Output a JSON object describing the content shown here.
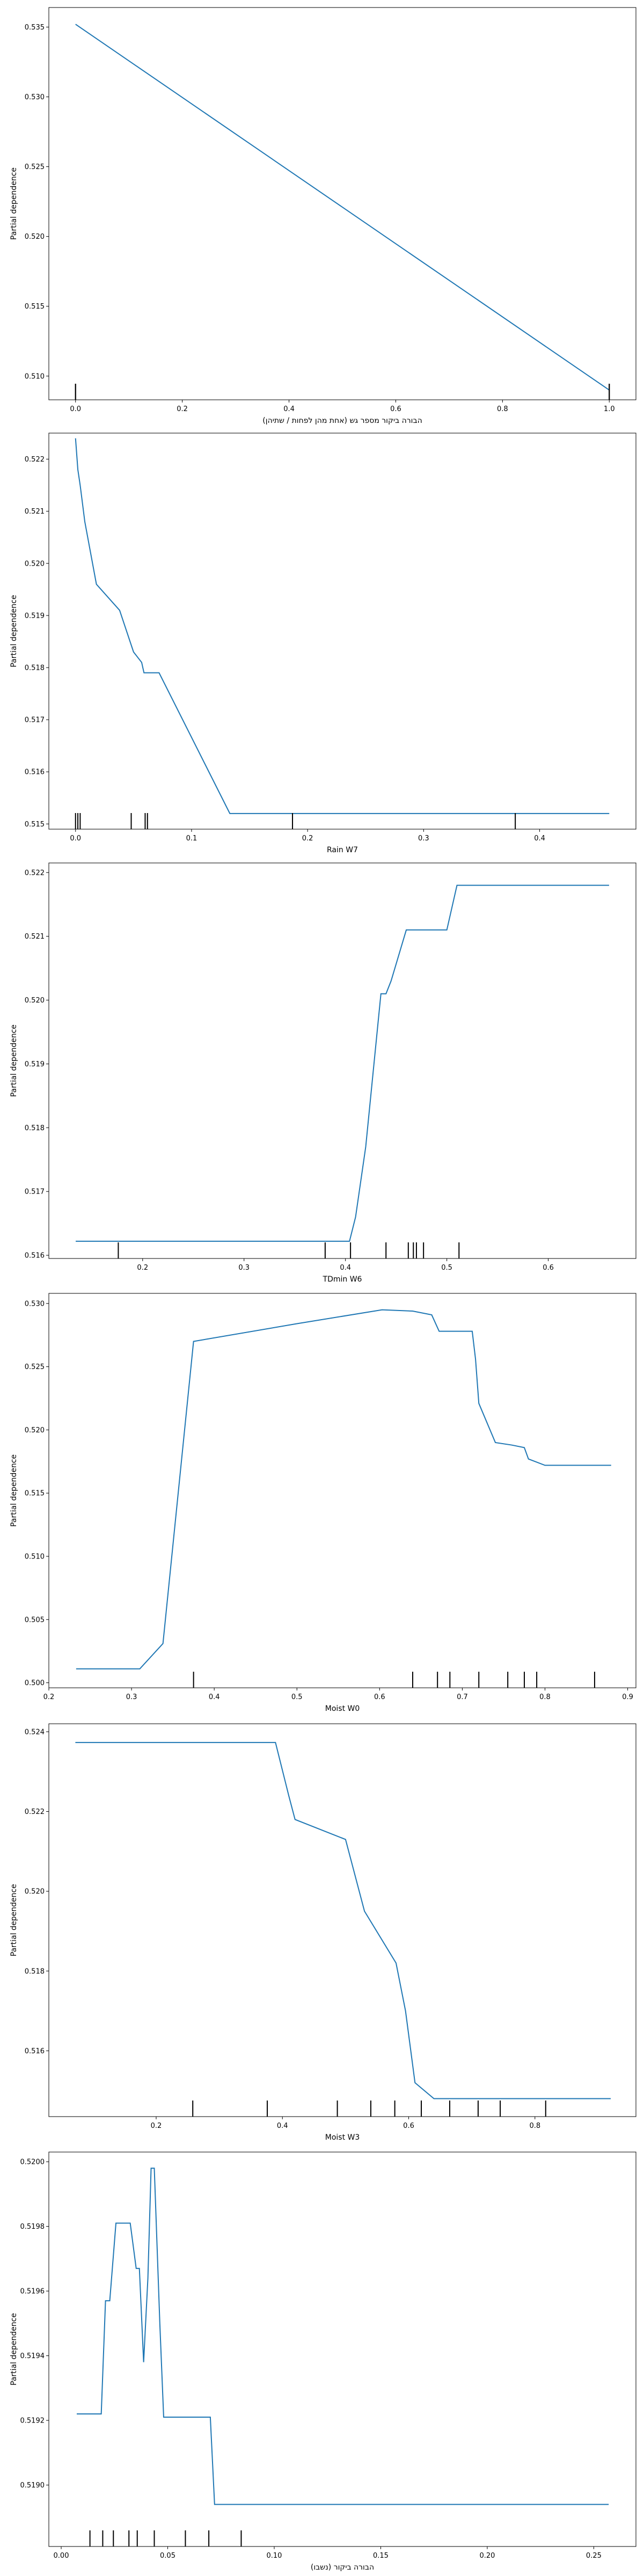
{
  "figure": {
    "background": "#ffffff",
    "line_color": "#1f77b4",
    "rug_color": "#000000"
  },
  "chart_data": [
    {
      "type": "line",
      "xlabel": "(אחת מהן לפחות / שתיהן) הבורה ביקור מספר גש",
      "ylabel": "Partial dependence",
      "xlim": [
        -0.05,
        1.05
      ],
      "ylim": [
        0.5083,
        0.5364
      ],
      "xticks": [
        0.0,
        0.2,
        0.4,
        0.6,
        0.8,
        1.0
      ],
      "xtick_labels": [
        "0.0",
        "0.2",
        "0.4",
        "0.6",
        "0.8",
        "1.0"
      ],
      "yticks": [
        0.51,
        0.515,
        0.52,
        0.525,
        0.53,
        0.535
      ],
      "ytick_labels": [
        "0.510",
        "0.515",
        "0.520",
        "0.525",
        "0.530",
        "0.535"
      ],
      "series": [
        {
          "x": [
            0.0,
            1.0
          ],
          "y": [
            0.5352,
            0.509
          ]
        }
      ],
      "rug": [
        0.0,
        0.0,
        1.0,
        1.0
      ]
    },
    {
      "type": "line",
      "xlabel": "Rain W7",
      "ylabel": "Partial dependence",
      "xlim": [
        -0.023,
        0.483
      ],
      "ylim": [
        0.5149,
        0.5225
      ],
      "xticks": [
        0.0,
        0.1,
        0.2,
        0.3,
        0.4
      ],
      "xtick_labels": [
        "0.0",
        "0.1",
        "0.2",
        "0.3",
        "0.4"
      ],
      "yticks": [
        0.515,
        0.516,
        0.517,
        0.518,
        0.519,
        0.52,
        0.521,
        0.522
      ],
      "ytick_labels": [
        "0.515",
        "0.516",
        "0.517",
        "0.518",
        "0.519",
        "0.520",
        "0.521",
        "0.522"
      ],
      "series": [
        {
          "x": [
            0.0,
            0.002,
            0.004,
            0.008,
            0.018,
            0.038,
            0.05,
            0.057,
            0.059,
            0.061,
            0.072,
            0.133,
            0.2,
            0.3,
            0.46
          ],
          "y": [
            0.5224,
            0.5218,
            0.5215,
            0.5208,
            0.5196,
            0.5191,
            0.5183,
            0.5181,
            0.5179,
            0.5179,
            0.5179,
            0.5152,
            0.5152,
            0.5152,
            0.5152
          ]
        }
      ],
      "rug": [
        0.0,
        0.002,
        0.004,
        0.048,
        0.06,
        0.062,
        0.187,
        0.379
      ]
    },
    {
      "type": "line",
      "xlabel": "TDmin W6",
      "ylabel": "Partial dependence",
      "xlim": [
        0.1075,
        0.6865
      ],
      "ylim": [
        0.51595,
        0.52215
      ],
      "xticks": [
        0.2,
        0.3,
        0.4,
        0.5,
        0.6,
        0.7
      ],
      "xtick_labels": [
        "0.2",
        "0.3",
        "0.4",
        "0.5",
        "0.6",
        "0.7"
      ],
      "yticks": [
        0.516,
        0.517,
        0.518,
        0.519,
        0.52,
        0.521,
        0.522
      ],
      "ytick_labels": [
        "0.516",
        "0.517",
        "0.518",
        "0.519",
        "0.520",
        "0.521",
        "0.522"
      ],
      "series": [
        {
          "x": [
            0.134,
            0.2,
            0.3,
            0.404,
            0.41,
            0.42,
            0.43,
            0.435,
            0.44,
            0.445,
            0.46,
            0.475,
            0.5,
            0.51,
            0.6,
            0.66
          ],
          "y": [
            0.51622,
            0.51622,
            0.51622,
            0.51622,
            0.5166,
            0.5177,
            0.5193,
            0.5201,
            0.5201,
            0.5203,
            0.5211,
            0.5211,
            0.5211,
            0.5218,
            0.5218,
            0.5218
          ]
        }
      ],
      "rug": [
        0.176,
        0.38,
        0.405,
        0.44,
        0.462,
        0.467,
        0.47,
        0.477,
        0.512
      ]
    },
    {
      "type": "line",
      "xlabel": "Moist W0",
      "ylabel": "Partial dependence",
      "xlim": [
        0.2,
        0.91
      ],
      "ylim": [
        0.4996,
        0.5308
      ],
      "xticks": [
        0.2,
        0.3,
        0.4,
        0.5,
        0.6,
        0.7,
        0.8,
        0.9
      ],
      "xtick_labels": [
        "0.2",
        "0.3",
        "0.4",
        "0.5",
        "0.6",
        "0.7",
        "0.8",
        "0.9"
      ],
      "yticks": [
        0.5,
        0.505,
        0.51,
        0.515,
        0.52,
        0.525,
        0.53
      ],
      "ytick_labels": [
        "0.500",
        "0.505",
        "0.510",
        "0.515",
        "0.520",
        "0.525",
        "0.530"
      ],
      "series": [
        {
          "x": [
            0.233,
            0.31,
            0.338,
            0.375,
            0.5,
            0.603,
            0.64,
            0.663,
            0.672,
            0.712,
            0.716,
            0.72,
            0.74,
            0.76,
            0.775,
            0.78,
            0.8,
            0.88
          ],
          "y": [
            0.5011,
            0.5011,
            0.5031,
            0.527,
            0.5284,
            0.5295,
            0.5294,
            0.5291,
            0.5278,
            0.5278,
            0.5256,
            0.5221,
            0.519,
            0.5188,
            0.5186,
            0.5177,
            0.5172,
            0.5172
          ]
        }
      ],
      "rug": [
        0.375,
        0.64,
        0.67,
        0.685,
        0.72,
        0.755,
        0.775,
        0.79,
        0.86
      ]
    },
    {
      "type": "line",
      "xlabel": "Moist W3",
      "ylabel": "Partial dependence",
      "xlim": [
        0.03,
        0.96
      ],
      "ylim": [
        0.51435,
        0.5242
      ],
      "xticks": [
        0.2,
        0.4,
        0.6,
        0.8
      ],
      "xtick_labels": [
        "0.2",
        "0.4",
        "0.6",
        "0.8"
      ],
      "yticks": [
        0.516,
        0.518,
        0.52,
        0.522,
        0.524
      ],
      "ytick_labels": [
        "0.516",
        "0.518",
        "0.520",
        "0.522",
        "0.524"
      ],
      "series": [
        {
          "x": [
            0.072,
            0.2,
            0.389,
            0.41,
            0.42,
            0.5,
            0.53,
            0.58,
            0.595,
            0.61,
            0.64,
            0.7,
            0.92
          ],
          "y": [
            0.52373,
            0.52373,
            0.52373,
            0.5224,
            0.5218,
            0.5213,
            0.5195,
            0.5182,
            0.517,
            0.5152,
            0.5148,
            0.5148,
            0.5148
          ]
        }
      ],
      "rug": [
        0.258,
        0.376,
        0.487,
        0.54,
        0.578,
        0.62,
        0.665,
        0.71,
        0.745,
        0.817
      ]
    },
    {
      "type": "line",
      "xlabel": "(נשבו) הבורה ביקור",
      "ylabel": "Partial dependence",
      "xlim": [
        -0.0058,
        0.2698
      ],
      "ylim": [
        0.51881,
        0.52003
      ],
      "xticks": [
        0.0,
        0.05,
        0.1,
        0.15,
        0.2,
        0.25
      ],
      "xtick_labels": [
        "0.00",
        "0.05",
        "0.10",
        "0.15",
        "0.20",
        "0.25"
      ],
      "yticks": [
        0.519,
        0.5192,
        0.5194,
        0.5196,
        0.5198,
        0.52
      ],
      "ytick_labels": [
        "0.5190",
        "0.5192",
        "0.5194",
        "0.5196",
        "0.5198",
        "0.5200"
      ],
      "series": [
        {
          "x": [
            0.0073,
            0.0188,
            0.0208,
            0.0228,
            0.0257,
            0.028,
            0.0305,
            0.0324,
            0.0352,
            0.0367,
            0.0387,
            0.0407,
            0.0422,
            0.0437,
            0.0463,
            0.0481,
            0.07,
            0.072,
            0.1,
            0.15,
            0.2,
            0.257
          ],
          "y": [
            0.51922,
            0.51922,
            0.51957,
            0.51957,
            0.51981,
            0.51981,
            0.51981,
            0.51981,
            0.51967,
            0.51967,
            0.51938,
            0.51964,
            0.51998,
            0.51998,
            0.5195,
            0.51921,
            0.51921,
            0.51894,
            0.51894,
            0.51894,
            0.51894,
            0.51894
          ]
        }
      ],
      "rug": [
        0.0135,
        0.0195,
        0.0245,
        0.0318,
        0.0357,
        0.0437,
        0.0583,
        0.0693,
        0.0845
      ]
    }
  ]
}
